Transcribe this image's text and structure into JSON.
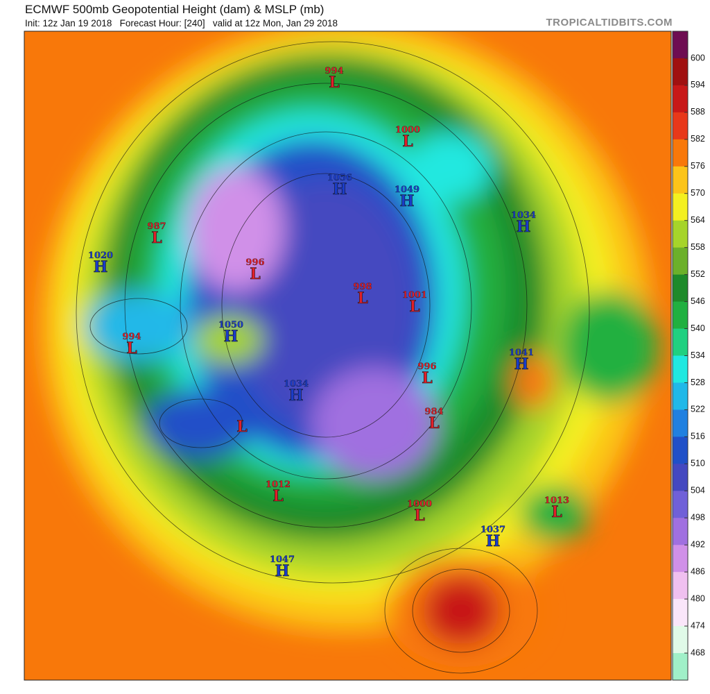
{
  "header": {
    "title": "ECMWF 500mb Geopotential Height (dam) & MSLP (mb)",
    "subtitle": "Init: 12z Jan 19 2018   Forecast Hour: [240]   valid at 12z Mon, Jan 29 2018",
    "credit": "TROPICALTIDBITS.COM"
  },
  "colorbar": {
    "ticks": [
      600,
      594,
      588,
      582,
      576,
      570,
      564,
      558,
      552,
      546,
      540,
      534,
      528,
      522,
      516,
      510,
      504,
      498,
      492,
      486,
      480,
      474,
      468
    ],
    "colors": [
      "#6e0d52",
      "#a01010",
      "#c81818",
      "#e8381a",
      "#f8780a",
      "#fcc419",
      "#f4f020",
      "#a6d42a",
      "#6cb02a",
      "#1e8a2a",
      "#20b040",
      "#20d080",
      "#20e8e0",
      "#20b8e8",
      "#2080e0",
      "#2050c8",
      "#4448c0",
      "#7060d8",
      "#a070e0",
      "#d090e8",
      "#f0c0f0",
      "#fae6fa",
      "#e0fae8",
      "#a0f0c8"
    ]
  },
  "centers": [
    {
      "type": "L",
      "value": 994
    },
    {
      "type": "L",
      "value": 1000
    },
    {
      "type": "H",
      "value": 1056
    },
    {
      "type": "H",
      "value": 1049
    },
    {
      "type": "H",
      "value": 1034
    },
    {
      "type": "L",
      "value": 987
    },
    {
      "type": "H",
      "value": 1020
    },
    {
      "type": "L",
      "value": 996
    },
    {
      "type": "L",
      "value": 998
    },
    {
      "type": "L",
      "value": 1001
    },
    {
      "type": "L",
      "value": 994
    },
    {
      "type": "H",
      "value": 1050
    },
    {
      "type": "H",
      "value": 1041
    },
    {
      "type": "L",
      "value": 996
    },
    {
      "type": "H",
      "value": 1034
    },
    {
      "type": "L",
      "value": 984
    },
    {
      "type": "L",
      "value": null
    },
    {
      "type": "L",
      "value": 1012
    },
    {
      "type": "L",
      "value": 1013
    },
    {
      "type": "L",
      "value": 1000
    },
    {
      "type": "H",
      "value": 1037
    },
    {
      "type": "H",
      "value": 1047
    }
  ]
}
